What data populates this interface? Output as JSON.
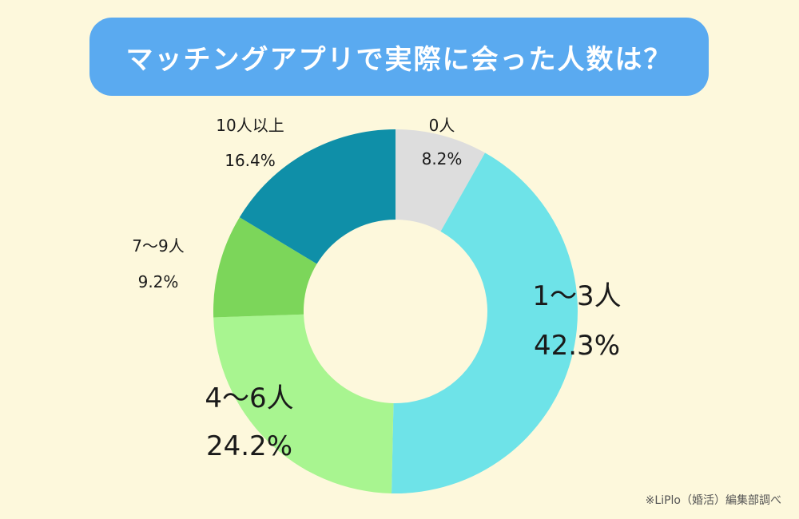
{
  "title": "マッチングアプリで実際に会った人数は？",
  "footnote": "※LiPlo（婚活）編集部調べ",
  "chart_data": {
    "type": "pie",
    "variant": "donut",
    "title": "マッチングアプリで実際に会った人数は？",
    "slices": [
      {
        "label": "0人",
        "value": 8.2,
        "value_label": "8.2%",
        "color": "#dddddd"
      },
      {
        "label": "1〜3人",
        "value": 42.3,
        "value_label": "42.3%",
        "color": "#6ee3e8"
      },
      {
        "label": "4〜6人",
        "value": 24.2,
        "value_label": "24.2%",
        "color": "#a8f590"
      },
      {
        "label": "7〜9人",
        "value": 9.2,
        "value_label": "9.2%",
        "color": "#7cd65a"
      },
      {
        "label": "10人以上",
        "value": 16.4,
        "value_label": "16.4%",
        "color": "#0f8fa8"
      }
    ]
  }
}
